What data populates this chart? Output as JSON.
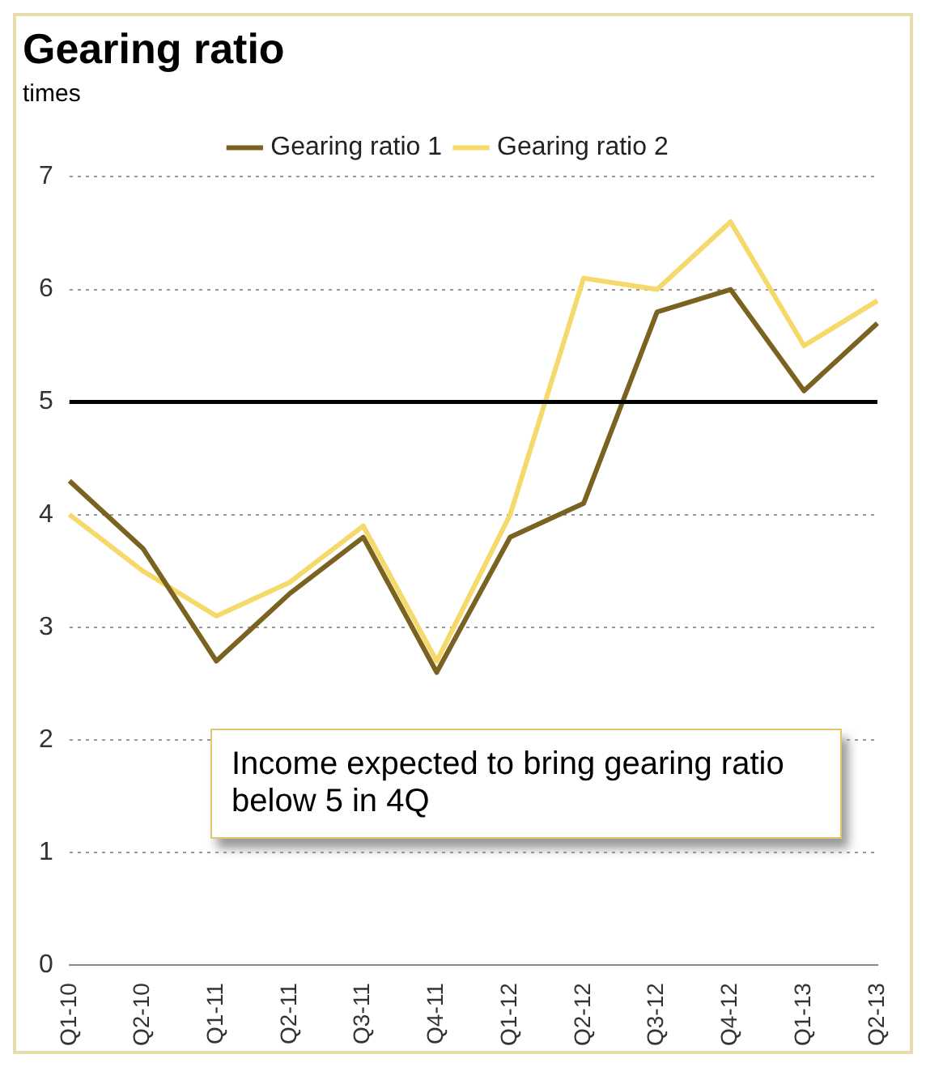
{
  "chart_data": {
    "type": "line",
    "title": "Gearing ratio",
    "subtitle": "times",
    "categories": [
      "Q1-10",
      "Q2-10",
      "Q1-11",
      "Q2-11",
      "Q3-11",
      "Q4-11",
      "Q1-12",
      "Q2-12",
      "Q3-12",
      "Q4-12",
      "Q1-13",
      "Q2-13"
    ],
    "series": [
      {
        "name": "Gearing ratio 1",
        "color": "#7a6220",
        "values": [
          4.3,
          3.7,
          2.7,
          3.3,
          3.8,
          2.6,
          3.8,
          4.1,
          5.8,
          6.0,
          5.1,
          5.7
        ]
      },
      {
        "name": "Gearing ratio 2",
        "color": "#f5d96a",
        "values": [
          4.0,
          3.5,
          3.1,
          3.4,
          3.9,
          2.7,
          4.0,
          6.1,
          6.0,
          6.6,
          5.5,
          5.9
        ]
      }
    ],
    "ylim": [
      0,
      7
    ],
    "yticks": [
      0,
      1,
      2,
      3,
      4,
      5,
      6,
      7
    ],
    "grid": "y",
    "legend": "top",
    "marker": "none",
    "line_style": "solid",
    "ref_lines": [
      {
        "axis": "y",
        "value": 5,
        "color": "#000000"
      }
    ],
    "annotations": [
      "Income expected to bring gearing ratio below 5 in 4Q"
    ]
  }
}
